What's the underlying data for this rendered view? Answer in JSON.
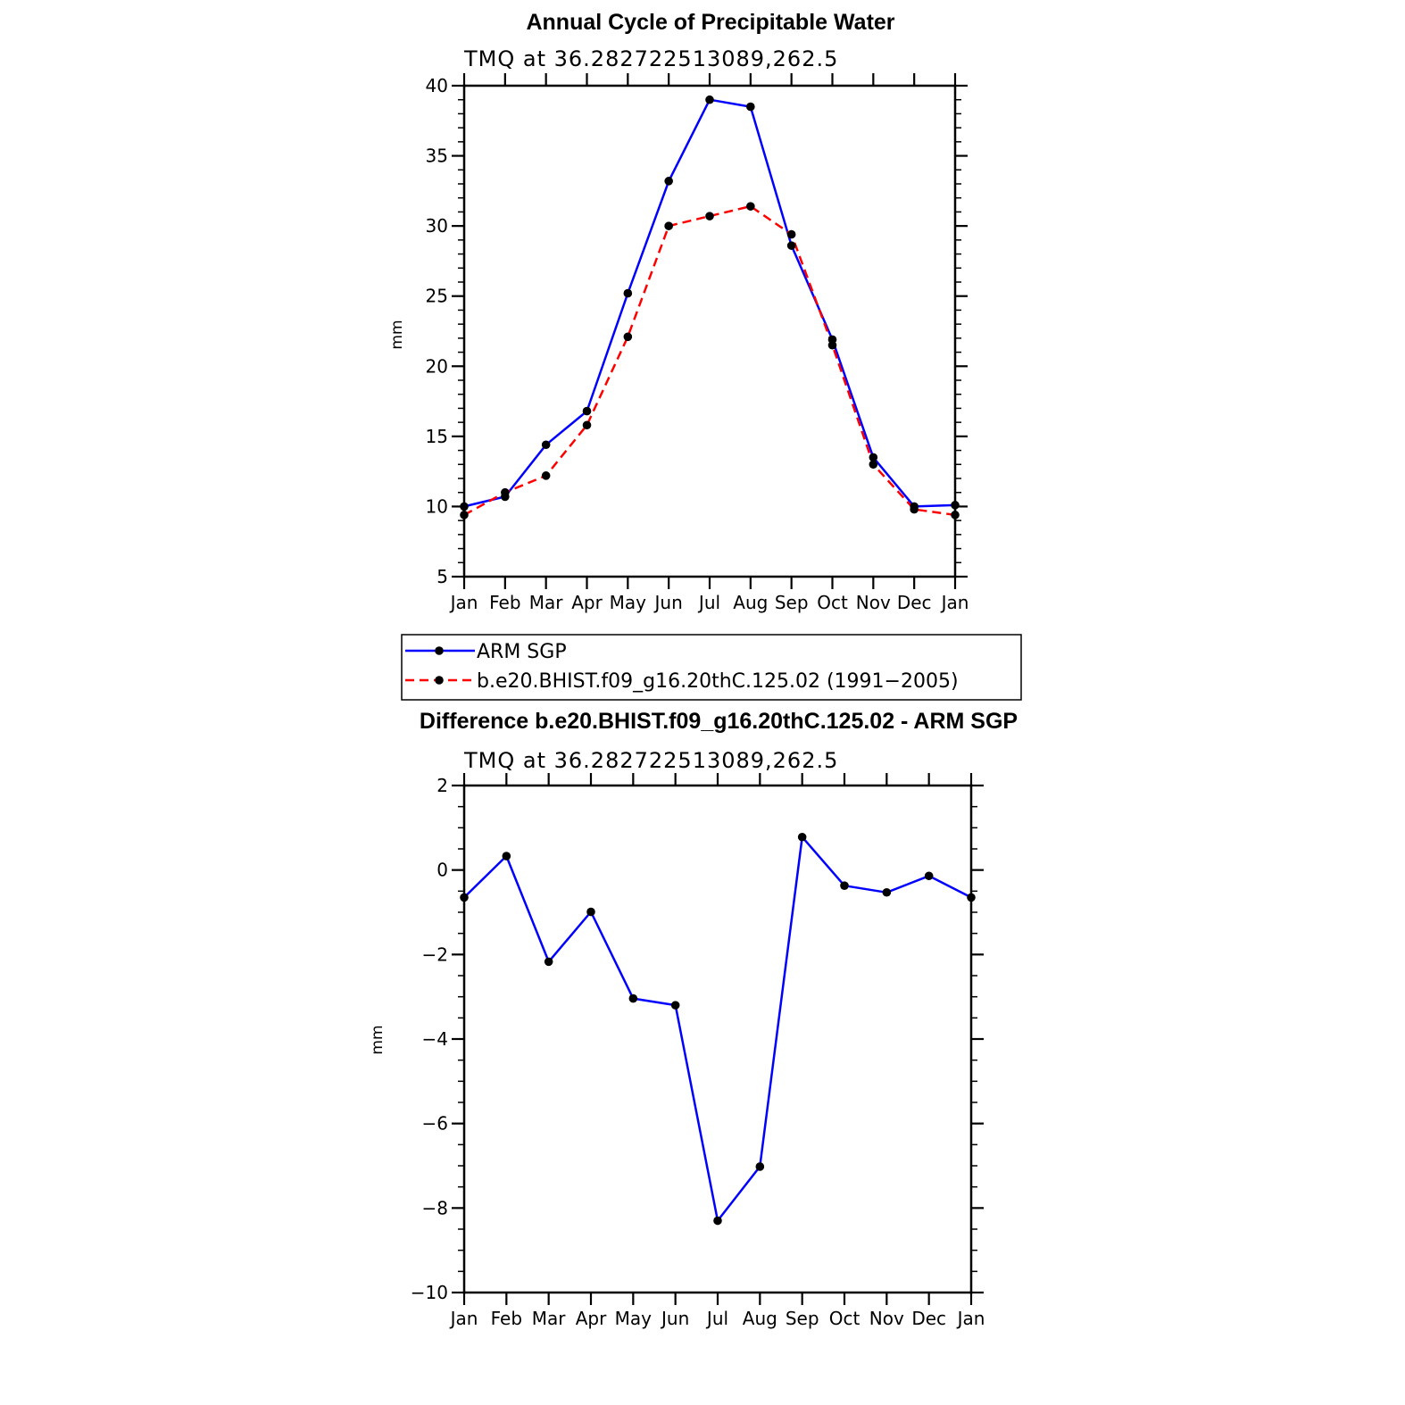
{
  "chart_data": [
    {
      "type": "line",
      "title": "Annual Cycle of Precipitable Water",
      "subtitle": "TMQ at 36.282722513089,262.5",
      "ylabel": "mm",
      "xlabel": "",
      "categories": [
        "Jan",
        "Feb",
        "Mar",
        "Apr",
        "May",
        "Jun",
        "Jul",
        "Aug",
        "Sep",
        "Oct",
        "Nov",
        "Dec",
        "Jan"
      ],
      "yticks": [
        "5",
        "10",
        "15",
        "20",
        "25",
        "30",
        "35",
        "40"
      ],
      "ylim": [
        5,
        40
      ],
      "series": [
        {
          "name": "ARM SGP",
          "color": "#0000ff",
          "dash": "solid",
          "values": [
            10.0,
            10.7,
            14.4,
            16.8,
            25.2,
            33.2,
            39.0,
            38.5,
            28.6,
            21.9,
            13.5,
            10.0,
            10.1
          ]
        },
        {
          "name": "b.e20.BHIST.f09_g16.20thC.125.02 (1991−2005)",
          "color": "#ff0000",
          "dash": "dashed",
          "values": [
            9.4,
            11.0,
            12.2,
            15.8,
            22.1,
            30.0,
            30.7,
            31.4,
            29.4,
            21.5,
            13.0,
            9.8,
            9.4
          ]
        }
      ],
      "legend_position": "below"
    },
    {
      "type": "line",
      "title": "Difference b.e20.BHIST.f09_g16.20thC.125.02 - ARM SGP",
      "subtitle": "TMQ at 36.282722513089,262.5",
      "ylabel": "mm",
      "xlabel": "",
      "categories": [
        "Jan",
        "Feb",
        "Mar",
        "Apr",
        "May",
        "Jun",
        "Jul",
        "Aug",
        "Sep",
        "Oct",
        "Nov",
        "Dec",
        "Jan"
      ],
      "yticks": [
        "−10",
        "−8",
        "−6",
        "−4",
        "−2",
        "0",
        "2"
      ],
      "ylim": [
        -10,
        2
      ],
      "series": [
        {
          "name": "Difference",
          "color": "#0000ff",
          "dash": "solid",
          "values": [
            -0.65,
            0.33,
            -2.17,
            -0.99,
            -3.04,
            -3.2,
            -8.3,
            -7.02,
            0.78,
            -0.37,
            -0.53,
            -0.14,
            -0.65
          ]
        }
      ]
    }
  ]
}
